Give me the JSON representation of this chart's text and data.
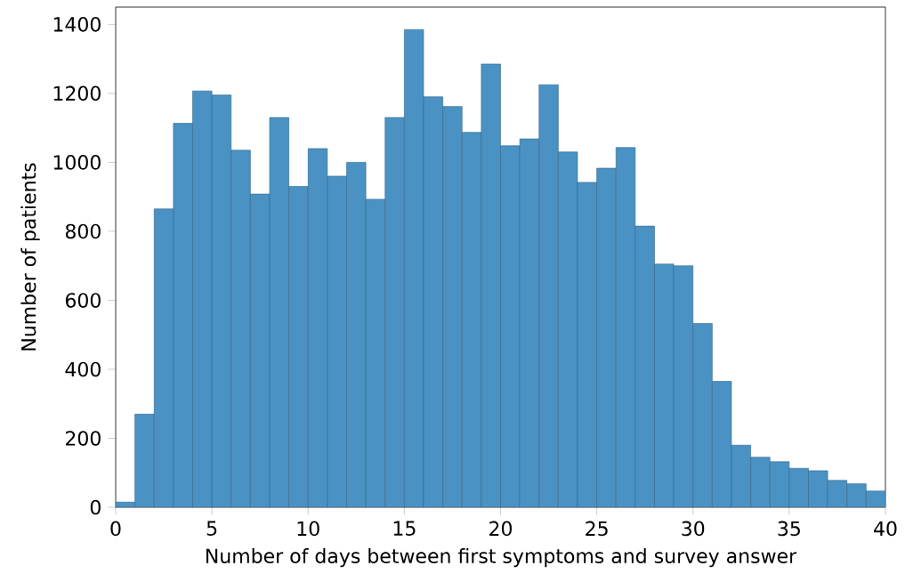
{
  "chart_data": {
    "type": "histogram",
    "xlabel": "Number of days between first symptoms and survey answer",
    "ylabel": "Number of patients",
    "bins": [
      0,
      1,
      2,
      3,
      4,
      5,
      6,
      7,
      8,
      9,
      10,
      11,
      12,
      13,
      14,
      15,
      16,
      17,
      18,
      19,
      20,
      21,
      22,
      23,
      24,
      25,
      26,
      27,
      28,
      29,
      30,
      31,
      32,
      33,
      34,
      35,
      36,
      37,
      38,
      39,
      40
    ],
    "values": [
      15,
      270,
      865,
      1113,
      1207,
      1195,
      1035,
      908,
      1130,
      930,
      1040,
      960,
      1000,
      893,
      1130,
      1385,
      1190,
      1162,
      1087,
      1285,
      1048,
      1068,
      1225,
      1030,
      942,
      983,
      1043,
      815,
      705,
      700,
      533,
      365,
      180,
      145,
      132,
      113,
      106,
      78,
      68,
      47
    ],
    "color": "#4a92c4",
    "xlim": [
      0,
      40
    ],
    "xticks": [
      0,
      5,
      10,
      15,
      20,
      25,
      30,
      35,
      40
    ],
    "ylim": [
      0,
      1450
    ],
    "yticks": [
      0,
      200,
      400,
      600,
      800,
      1000,
      1200,
      1400
    ]
  }
}
